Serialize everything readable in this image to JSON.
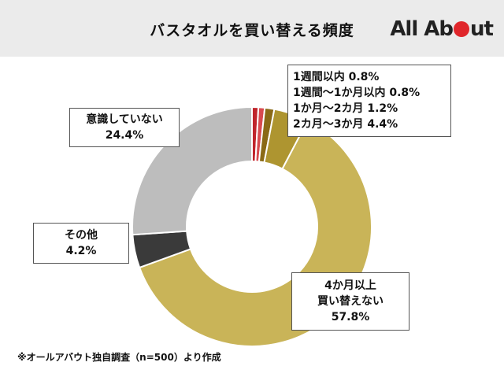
{
  "header": {
    "title": "バスタオルを買い替える頻度",
    "logo": {
      "text_before": "All Ab",
      "text_after": "ut",
      "dot_color": "#e0262b"
    }
  },
  "chart_data": {
    "type": "pie",
    "title": "バスタオルを買い替える頻度",
    "donut": true,
    "slices": [
      {
        "label": "1週間以内",
        "value": 0.8,
        "color": "#c0242b"
      },
      {
        "label": "1週間～1か月以内",
        "value": 0.8,
        "color": "#d84a4f"
      },
      {
        "label": "1か月～2カ月",
        "value": 1.2,
        "color": "#8a6a16"
      },
      {
        "label": "2カ月～3か月",
        "value": 4.4,
        "color": "#ae9530"
      },
      {
        "label": "4か月以上買い替えない",
        "value": 57.8,
        "color": "#c9b458"
      },
      {
        "label": "その他",
        "value": 4.2,
        "color": "#3a3a3a"
      },
      {
        "label": "意識していない",
        "value": 24.4,
        "color": "#bdbdbd"
      }
    ]
  },
  "labels": {
    "top_right_lines": [
      "1週間以内 0.8%",
      "1週間～1か月以内 0.8%",
      "1か月～2カ月 1.2%",
      "2カ月～3か月 4.4%"
    ],
    "unaware": {
      "name": "意識していない",
      "value": "24.4%"
    },
    "other": {
      "name": "その他",
      "value": "4.2%"
    },
    "four_months": {
      "line1": "4か月以上",
      "line2": "買い替えない",
      "value": "57.8%"
    }
  },
  "footnote": "※オールアバウト独自調査（n=500）より作成"
}
